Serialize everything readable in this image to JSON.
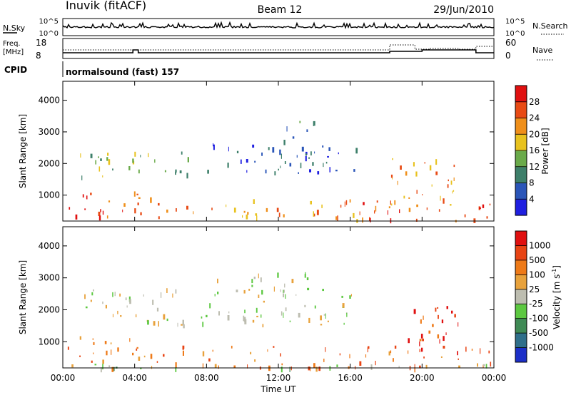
{
  "header": {
    "station": "Inuvik (fitACF)",
    "beam": "Beam 12",
    "date": "29/Jun/2010"
  },
  "sky_panel": {
    "left_label": "N.Sky",
    "left_ticks": [
      "10^5",
      "10^0"
    ],
    "right_ticks": [
      "10^5",
      "10^0"
    ],
    "right_label": "N.Search"
  },
  "freq_panel": {
    "left_label_1": "Freq.",
    "left_label_2": "[MHz]",
    "left_ticks": [
      "18",
      "8"
    ],
    "right_ticks": [
      "60",
      "0"
    ],
    "right_label": "Nave"
  },
  "cpid": {
    "label": "CPID",
    "text": "normalsound (fast) 157"
  },
  "chart_data": [
    {
      "type": "heatmap",
      "name": "power",
      "ylabel": "Slant Range [km]",
      "yticks": [
        "1000",
        "2000",
        "3000",
        "4000"
      ],
      "ylim": [
        180,
        4600
      ],
      "xticks": [
        "00:00",
        "04:00",
        "08:00",
        "12:00",
        "16:00",
        "20:00",
        "00:00"
      ],
      "xlim_hours": [
        0,
        24
      ],
      "colorbar_label": "Power [dB]",
      "colorbar_ticks": [
        "4",
        "8",
        "12",
        "16",
        "20",
        "24",
        "28"
      ],
      "colorbar_colors": [
        "#1f1fe0",
        "#2a55b8",
        "#3d7f6a",
        "#6aaa4a",
        "#e8c21e",
        "#ef8f1a",
        "#e84a14",
        "#e01010"
      ],
      "bands": [
        {
          "t0": 0.0,
          "t1": 3.0,
          "r0": 200,
          "r1": 1100,
          "level": 6
        },
        {
          "t0": 2.6,
          "t1": 5.4,
          "r0": 450,
          "r1": 1150,
          "level": 6
        },
        {
          "t0": 0.4,
          "t1": 7.0,
          "r0": 1500,
          "r1": 2400,
          "level": 3
        },
        {
          "t0": 5.0,
          "t1": 11.5,
          "r0": 250,
          "r1": 750,
          "level": 5
        },
        {
          "t0": 8.0,
          "t1": 16.5,
          "r0": 1700,
          "r1": 2700,
          "level": 1
        },
        {
          "t0": 10.5,
          "t1": 18.3,
          "r0": 200,
          "r1": 900,
          "level": 5
        },
        {
          "t0": 16.5,
          "t1": 24.0,
          "r0": 200,
          "r1": 800,
          "level": 6
        },
        {
          "t0": 18.2,
          "t1": 22.0,
          "r0": 700,
          "r1": 2300,
          "level": 5
        },
        {
          "t0": 12.0,
          "t1": 14.0,
          "r0": 1900,
          "r1": 3400,
          "level": 2
        }
      ]
    },
    {
      "type": "heatmap",
      "name": "velocity",
      "ylabel": "Slant Range [km]",
      "yticks": [
        "1000",
        "2000",
        "3000",
        "4000"
      ],
      "ylim": [
        180,
        4600
      ],
      "xticks": [
        "00:00",
        "04:00",
        "08:00",
        "12:00",
        "16:00",
        "20:00",
        "00:00"
      ],
      "xlabel": "Time UT",
      "xlim_hours": [
        0,
        24
      ],
      "colorbar_label": "Velocity [m s",
      "colorbar_label_sup": "-1",
      "colorbar_label_end": "]",
      "colorbar_ticks": [
        "1000",
        "500",
        "100",
        "25",
        "-25",
        "-100",
        "-500",
        "-1000"
      ],
      "colorbar_colors": [
        "#1c2fc8",
        "#2f6f8a",
        "#3f8a55",
        "#5cc840",
        "#bdbdb0",
        "#e8a23c",
        "#ee7a18",
        "#e84414",
        "#e01010"
      ],
      "bands": [
        {
          "t0": 0.0,
          "t1": 4.5,
          "r0": 200,
          "r1": 1200,
          "level": 6
        },
        {
          "t0": 4.5,
          "t1": 12.0,
          "r0": 200,
          "r1": 900,
          "level": 6
        },
        {
          "t0": 12.0,
          "t1": 24.0,
          "r0": 200,
          "r1": 900,
          "level": 6
        },
        {
          "t0": 18.2,
          "t1": 22.0,
          "r0": 700,
          "r1": 2300,
          "level": 7
        },
        {
          "t0": 1.0,
          "t1": 16.5,
          "r0": 1500,
          "r1": 2700,
          "level": 4
        },
        {
          "t0": 8.5,
          "t1": 14.5,
          "r0": 2600,
          "r1": 3200,
          "level": 4
        },
        {
          "t0": 0.0,
          "t1": 24.0,
          "r0": 180,
          "r1": 330,
          "level": 3
        }
      ]
    }
  ]
}
